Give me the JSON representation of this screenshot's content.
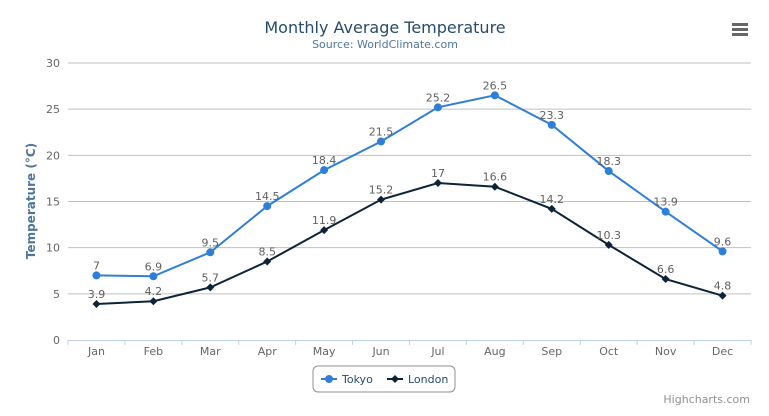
{
  "chart_data": {
    "type": "line",
    "title": "Monthly Average Temperature",
    "subtitle": "Source: WorldClimate.com",
    "xlabel": "",
    "ylabel": "Temperature (°C)",
    "ylim": [
      0,
      30
    ],
    "yticks": [
      0,
      5,
      10,
      15,
      20,
      25,
      30
    ],
    "grid": true,
    "legend": "bottom-center",
    "categories": [
      "Jan",
      "Feb",
      "Mar",
      "Apr",
      "May",
      "Jun",
      "Jul",
      "Aug",
      "Sep",
      "Oct",
      "Nov",
      "Dec"
    ],
    "series": [
      {
        "name": "Tokyo",
        "color": "#2f7ed8",
        "marker": "circle",
        "values": [
          7.0,
          6.9,
          9.5,
          14.5,
          18.4,
          21.5,
          25.2,
          26.5,
          23.3,
          18.3,
          13.9,
          9.6
        ]
      },
      {
        "name": "London",
        "color": "#0d233a",
        "marker": "diamond",
        "values": [
          3.9,
          4.2,
          5.7,
          8.5,
          11.9,
          15.2,
          17.0,
          16.6,
          14.2,
          10.3,
          6.6,
          4.8
        ]
      }
    ]
  },
  "credits": "Highcharts.com",
  "menu_icon": "hamburger-menu-icon",
  "colors": {
    "title": "#274b6d",
    "subtitle": "#4d759e",
    "axis_text": "#666666",
    "grid": "#c0c0c0",
    "axis_line": "#c0d0e0"
  }
}
